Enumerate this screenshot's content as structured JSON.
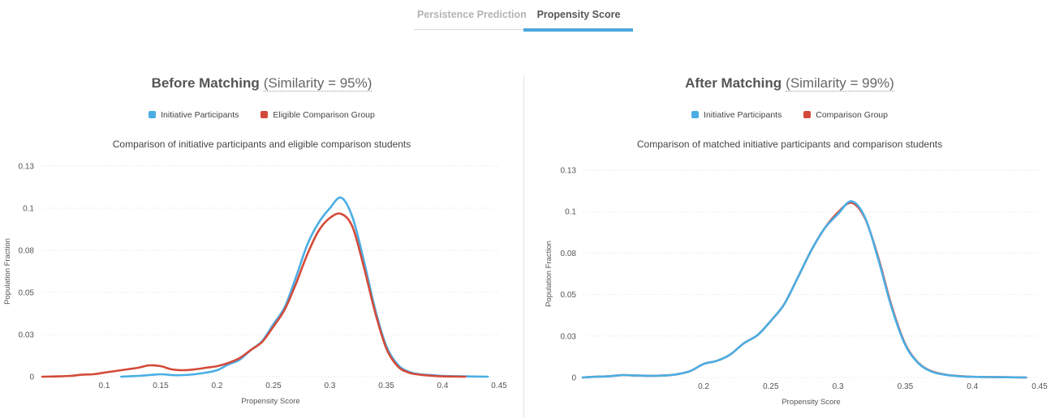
{
  "tabs": [
    {
      "label": "Persistence Prediction",
      "active": false
    },
    {
      "label": "Propensity Score",
      "active": true
    }
  ],
  "colors": {
    "blue": "#4aaee4",
    "red": "#d44a3a",
    "tab_accent": "#4aa8dc"
  },
  "panels": [
    {
      "title": "Before Matching",
      "similarity": "(Similarity = 95%)",
      "legend": [
        "Initiative Participants",
        "Eligible Comparison Group"
      ],
      "subtitle": "Comparison of initiative participants and eligible comparison students"
    },
    {
      "title": "After Matching",
      "similarity": "(Similarity = 99%)",
      "legend": [
        "Initiative Participants",
        "Comparison Group"
      ],
      "subtitle": "Comparison of matched initiative participants and comparison students"
    }
  ],
  "chart_data": [
    {
      "type": "line",
      "title": "Comparison of initiative participants and eligible comparison students",
      "xlabel": "Propensity Score",
      "ylabel": "Population Fraction",
      "xlim": [
        0.045,
        0.45
      ],
      "ylim": [
        0,
        0.13
      ],
      "x_ticks": [
        0.1,
        0.15,
        0.2,
        0.25,
        0.3,
        0.35,
        0.4,
        0.45
      ],
      "x_tick_labels": [
        "0.1",
        "0.15",
        "0.2",
        "0.25",
        "0.3",
        "0.35",
        "0.4",
        "0.45"
      ],
      "y_ticks": [
        0,
        0.026,
        0.052,
        0.078,
        0.104,
        0.13
      ],
      "y_tick_labels": [
        "0",
        "0.03",
        "0.05",
        "0.08",
        "0.1",
        "0.13"
      ],
      "grid": true,
      "legend_position": "top",
      "series": [
        {
          "name": "Initiative Participants",
          "color": "#4aaee4",
          "x": [
            0.115,
            0.13,
            0.14,
            0.15,
            0.16,
            0.17,
            0.18,
            0.19,
            0.2,
            0.21,
            0.22,
            0.23,
            0.24,
            0.25,
            0.26,
            0.27,
            0.28,
            0.29,
            0.3,
            0.31,
            0.32,
            0.33,
            0.34,
            0.35,
            0.36,
            0.37,
            0.38,
            0.39,
            0.4,
            0.42,
            0.44
          ],
          "y": [
            0.0,
            0.0005,
            0.001,
            0.0015,
            0.001,
            0.001,
            0.0015,
            0.0025,
            0.004,
            0.0075,
            0.0105,
            0.0165,
            0.022,
            0.0325,
            0.043,
            0.0615,
            0.0815,
            0.095,
            0.104,
            0.1105,
            0.0985,
            0.072,
            0.042,
            0.019,
            0.0075,
            0.003,
            0.0015,
            0.001,
            0.0005,
            0.0002,
            0.0
          ]
        },
        {
          "name": "Eligible Comparison Group",
          "color": "#d44a3a",
          "x": [
            0.045,
            0.06,
            0.07,
            0.08,
            0.09,
            0.1,
            0.11,
            0.12,
            0.13,
            0.14,
            0.15,
            0.16,
            0.17,
            0.18,
            0.19,
            0.2,
            0.21,
            0.22,
            0.23,
            0.24,
            0.25,
            0.26,
            0.27,
            0.28,
            0.29,
            0.3,
            0.31,
            0.32,
            0.33,
            0.34,
            0.35,
            0.36,
            0.37,
            0.38,
            0.39,
            0.4,
            0.42
          ],
          "y": [
            0.0,
            0.0002,
            0.0005,
            0.0012,
            0.0015,
            0.0025,
            0.0035,
            0.0045,
            0.0055,
            0.007,
            0.0065,
            0.0045,
            0.004,
            0.0045,
            0.0055,
            0.0065,
            0.0085,
            0.0115,
            0.0165,
            0.0215,
            0.031,
            0.0415,
            0.0575,
            0.0755,
            0.09,
            0.098,
            0.1005,
            0.0925,
            0.068,
            0.04,
            0.0175,
            0.0065,
            0.0025,
            0.0012,
            0.0006,
            0.0002,
            0.0
          ]
        }
      ]
    },
    {
      "type": "line",
      "title": "Comparison of matched initiative participants and comparison students",
      "xlabel": "Propensity Score",
      "ylabel": "Population Fraction",
      "xlim": [
        0.11,
        0.45
      ],
      "ylim": [
        0,
        0.13
      ],
      "x_ticks": [
        0.2,
        0.25,
        0.3,
        0.35,
        0.4,
        0.45
      ],
      "x_tick_labels": [
        "0.2",
        "0.25",
        "0.3",
        "0.35",
        "0.4",
        "0.45"
      ],
      "y_ticks": [
        0,
        0.026,
        0.052,
        0.078,
        0.104,
        0.13
      ],
      "y_tick_labels": [
        "0",
        "0.03",
        "0.05",
        "0.08",
        "0.1",
        "0.13"
      ],
      "grid": true,
      "legend_position": "top",
      "series": [
        {
          "name": "Comparison Group",
          "color": "#d44a3a",
          "x": [
            0.11,
            0.12,
            0.13,
            0.14,
            0.15,
            0.16,
            0.17,
            0.18,
            0.19,
            0.2,
            0.21,
            0.22,
            0.23,
            0.24,
            0.25,
            0.26,
            0.27,
            0.28,
            0.29,
            0.3,
            0.31,
            0.32,
            0.33,
            0.34,
            0.35,
            0.36,
            0.37,
            0.38,
            0.39,
            0.4,
            0.42,
            0.44
          ],
          "y": [
            0.0,
            0.0005,
            0.0008,
            0.0015,
            0.0012,
            0.001,
            0.0012,
            0.002,
            0.004,
            0.0085,
            0.0105,
            0.0145,
            0.0215,
            0.0265,
            0.0355,
            0.046,
            0.0625,
            0.0795,
            0.0935,
            0.1035,
            0.1095,
            0.1,
            0.075,
            0.0445,
            0.021,
            0.009,
            0.0038,
            0.0018,
            0.0009,
            0.0004,
            0.0002,
            0.0
          ]
        },
        {
          "name": "Initiative Participants",
          "color": "#4aaee4",
          "x": [
            0.11,
            0.12,
            0.13,
            0.14,
            0.15,
            0.16,
            0.17,
            0.18,
            0.19,
            0.2,
            0.21,
            0.22,
            0.23,
            0.24,
            0.25,
            0.26,
            0.27,
            0.28,
            0.29,
            0.3,
            0.31,
            0.32,
            0.33,
            0.34,
            0.35,
            0.36,
            0.37,
            0.38,
            0.39,
            0.4,
            0.42,
            0.44
          ],
          "y": [
            0.0,
            0.0005,
            0.0008,
            0.0015,
            0.0012,
            0.001,
            0.0012,
            0.002,
            0.004,
            0.0085,
            0.0105,
            0.0145,
            0.0215,
            0.0265,
            0.0355,
            0.046,
            0.0625,
            0.0795,
            0.0935,
            0.1025,
            0.1105,
            0.1005,
            0.074,
            0.0435,
            0.0205,
            0.0088,
            0.0036,
            0.0017,
            0.0008,
            0.0004,
            0.0002,
            0.0
          ]
        }
      ]
    }
  ]
}
